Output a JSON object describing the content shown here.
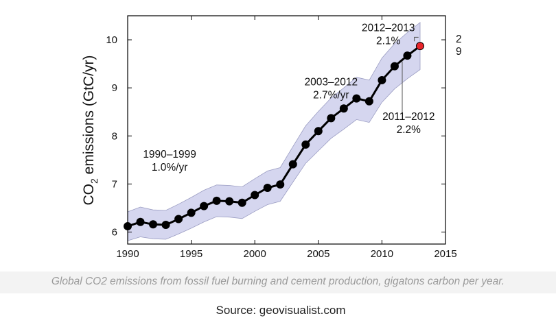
{
  "chart_data": {
    "type": "line",
    "title": "",
    "xlabel": "",
    "ylabel": "CO2 emissions (GtC/yr)",
    "ylabel_parts": {
      "prefix": "CO",
      "subscript": "2",
      "suffix": " emissions (GtC/yr)"
    },
    "xlim": [
      1990,
      2015
    ],
    "ylim": [
      5.75,
      10.5
    ],
    "x_ticks": [
      1990,
      1995,
      2000,
      2005,
      2010,
      2015
    ],
    "y_ticks": [
      6,
      7,
      8,
      9,
      10
    ],
    "grid": false,
    "series": [
      {
        "name": "Emissions",
        "x": [
          1990,
          1991,
          1992,
          1993,
          1994,
          1995,
          1996,
          1997,
          1998,
          1999,
          2000,
          2001,
          2002,
          2003,
          2004,
          2005,
          2006,
          2007,
          2008,
          2009,
          2010,
          2011,
          2012
        ],
        "y": [
          6.12,
          6.21,
          6.16,
          6.15,
          6.27,
          6.4,
          6.54,
          6.65,
          6.64,
          6.61,
          6.77,
          6.92,
          6.99,
          7.41,
          7.82,
          8.1,
          8.37,
          8.57,
          8.78,
          8.72,
          9.16,
          9.45,
          9.67
        ],
        "band": {
          "lower": [
            5.82,
            5.9,
            5.86,
            5.85,
            5.96,
            6.08,
            6.21,
            6.32,
            6.31,
            6.28,
            6.43,
            6.57,
            6.64,
            7.04,
            7.43,
            7.69,
            7.95,
            8.14,
            8.34,
            8.28,
            8.7,
            8.98,
            9.19
          ],
          "upper": [
            6.42,
            6.52,
            6.46,
            6.45,
            6.58,
            6.72,
            6.87,
            6.98,
            6.97,
            6.94,
            7.11,
            7.27,
            7.34,
            7.78,
            8.21,
            8.51,
            8.79,
            9.0,
            9.22,
            9.16,
            9.62,
            9.92,
            10.15
          ]
        }
      },
      {
        "name": "Projection 2013",
        "x": [
          2013
        ],
        "y": [
          9.87
        ],
        "band": {
          "lower": [
            9.38
          ],
          "upper": [
            10.36
          ]
        }
      }
    ],
    "annotations": [
      {
        "lines": [
          "1990–1999",
          "1.0%/yr"
        ],
        "x": 1993.3,
        "y": 7.55
      },
      {
        "lines": [
          "2003–2012",
          "2.7%/yr"
        ],
        "x": 2006.0,
        "y": 9.05
      },
      {
        "lines": [
          "2012–2013",
          "2.1%"
        ],
        "x": 2010.5,
        "y": 10.18
      },
      {
        "lines": [
          "2011–2012",
          "2.2%"
        ],
        "x": 2012.1,
        "y": 8.33
      }
    ],
    "colors": {
      "band": "#d5d6ef",
      "band_edge": "#9a9cc2",
      "line": "#000000",
      "projection": "#e8242a"
    }
  },
  "caption": "Global CO2 emissions from fossil fuel burning and cement production, gigatons carbon per year.",
  "source": "Source:  geovisualist.com"
}
